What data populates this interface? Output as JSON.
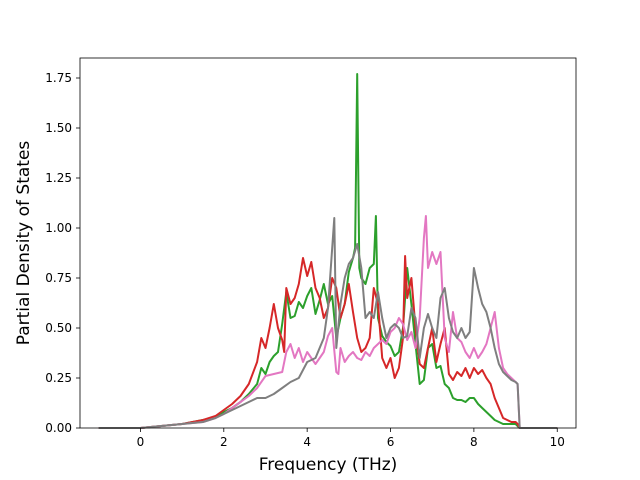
{
  "chart_data": {
    "type": "line",
    "title": "",
    "xlabel": "Frequency (THz)",
    "ylabel": "Partial Density of States",
    "xlim": [
      -1.45,
      10.45
    ],
    "ylim": [
      0,
      1.85
    ],
    "xticks": [
      0,
      2,
      4,
      6,
      8,
      10
    ],
    "yticks": [
      "0.00",
      "0.25",
      "0.50",
      "0.75",
      "1.00",
      "1.25",
      "1.50",
      "1.75"
    ],
    "grid": false,
    "legend": "none",
    "series": [
      {
        "color": "#2ca02c",
        "x": [
          -1.0,
          0.0,
          0.5,
          1.0,
          1.5,
          1.8,
          2.0,
          2.2,
          2.4,
          2.6,
          2.8,
          2.9,
          3.0,
          3.1,
          3.2,
          3.3,
          3.4,
          3.5,
          3.6,
          3.7,
          3.8,
          3.9,
          4.0,
          4.1,
          4.2,
          4.3,
          4.4,
          4.5,
          4.6,
          4.7,
          4.8,
          4.9,
          5.0,
          5.1,
          5.15,
          5.2,
          5.25,
          5.3,
          5.4,
          5.5,
          5.6,
          5.65,
          5.7,
          5.8,
          5.9,
          6.0,
          6.1,
          6.2,
          6.3,
          6.4,
          6.5,
          6.6,
          6.7,
          6.8,
          6.9,
          7.0,
          7.1,
          7.2,
          7.3,
          7.4,
          7.5,
          7.6,
          7.7,
          7.8,
          7.9,
          8.0,
          8.1,
          8.2,
          8.3,
          8.4,
          8.5,
          8.6,
          8.7,
          8.8,
          8.9,
          9.0,
          9.05,
          9.1,
          10.0
        ],
        "y": [
          0.0,
          0.0,
          0.01,
          0.02,
          0.04,
          0.05,
          0.08,
          0.1,
          0.13,
          0.17,
          0.22,
          0.3,
          0.27,
          0.33,
          0.36,
          0.38,
          0.52,
          0.68,
          0.55,
          0.56,
          0.63,
          0.6,
          0.66,
          0.7,
          0.57,
          0.64,
          0.72,
          0.62,
          0.66,
          0.45,
          0.55,
          0.62,
          0.78,
          0.85,
          0.9,
          1.77,
          0.8,
          0.75,
          0.72,
          0.8,
          0.82,
          1.06,
          0.55,
          0.46,
          0.43,
          0.41,
          0.36,
          0.38,
          0.5,
          0.8,
          0.62,
          0.42,
          0.22,
          0.24,
          0.4,
          0.42,
          0.3,
          0.31,
          0.22,
          0.2,
          0.15,
          0.14,
          0.14,
          0.13,
          0.15,
          0.15,
          0.12,
          0.1,
          0.08,
          0.06,
          0.04,
          0.03,
          0.02,
          0.02,
          0.02,
          0.02,
          0.01,
          0.0,
          0.0
        ]
      },
      {
        "color": "#d62728",
        "x": [
          -1.0,
          0.0,
          0.5,
          1.0,
          1.5,
          1.8,
          2.0,
          2.2,
          2.4,
          2.6,
          2.8,
          2.9,
          3.0,
          3.1,
          3.2,
          3.3,
          3.4,
          3.45,
          3.5,
          3.6,
          3.7,
          3.8,
          3.9,
          4.0,
          4.1,
          4.2,
          4.3,
          4.4,
          4.5,
          4.6,
          4.7,
          4.8,
          4.9,
          5.0,
          5.1,
          5.2,
          5.3,
          5.4,
          5.5,
          5.6,
          5.7,
          5.8,
          5.9,
          6.0,
          6.1,
          6.2,
          6.3,
          6.35,
          6.4,
          6.5,
          6.6,
          6.7,
          6.8,
          6.9,
          7.0,
          7.1,
          7.2,
          7.3,
          7.4,
          7.5,
          7.6,
          7.7,
          7.8,
          7.9,
          8.0,
          8.1,
          8.2,
          8.3,
          8.4,
          8.5,
          8.6,
          8.7,
          8.8,
          8.9,
          9.0,
          9.05,
          9.1,
          10.0
        ],
        "y": [
          0.0,
          0.0,
          0.01,
          0.02,
          0.04,
          0.06,
          0.09,
          0.12,
          0.16,
          0.22,
          0.33,
          0.45,
          0.4,
          0.5,
          0.62,
          0.5,
          0.44,
          0.38,
          0.7,
          0.62,
          0.65,
          0.72,
          0.85,
          0.76,
          0.83,
          0.7,
          0.65,
          0.55,
          0.6,
          0.75,
          0.7,
          0.55,
          0.62,
          0.72,
          0.58,
          0.45,
          0.38,
          0.4,
          0.45,
          0.7,
          0.62,
          0.35,
          0.3,
          0.35,
          0.25,
          0.3,
          0.45,
          0.86,
          0.65,
          0.75,
          0.5,
          0.32,
          0.3,
          0.4,
          0.5,
          0.33,
          0.42,
          0.5,
          0.27,
          0.24,
          0.28,
          0.26,
          0.3,
          0.25,
          0.3,
          0.27,
          0.29,
          0.25,
          0.22,
          0.15,
          0.1,
          0.05,
          0.04,
          0.03,
          0.03,
          0.02,
          0.0,
          0.0
        ]
      },
      {
        "color": "#e377c2",
        "x": [
          -1.0,
          0.0,
          0.5,
          1.0,
          1.5,
          1.8,
          2.0,
          2.2,
          2.4,
          2.6,
          2.8,
          3.0,
          3.2,
          3.4,
          3.5,
          3.6,
          3.7,
          3.8,
          3.9,
          4.0,
          4.1,
          4.2,
          4.3,
          4.4,
          4.5,
          4.6,
          4.7,
          4.75,
          4.8,
          4.9,
          5.0,
          5.1,
          5.2,
          5.3,
          5.4,
          5.5,
          5.6,
          5.7,
          5.8,
          5.9,
          6.0,
          6.1,
          6.2,
          6.3,
          6.4,
          6.5,
          6.6,
          6.7,
          6.8,
          6.85,
          6.9,
          7.0,
          7.1,
          7.2,
          7.3,
          7.4,
          7.5,
          7.6,
          7.7,
          7.8,
          7.9,
          8.0,
          8.1,
          8.2,
          8.3,
          8.4,
          8.5,
          8.6,
          8.7,
          8.8,
          8.9,
          9.0,
          9.05,
          9.1,
          10.0
        ],
        "y": [
          0.0,
          0.0,
          0.01,
          0.02,
          0.03,
          0.05,
          0.07,
          0.1,
          0.13,
          0.16,
          0.2,
          0.26,
          0.27,
          0.28,
          0.38,
          0.42,
          0.35,
          0.4,
          0.33,
          0.38,
          0.35,
          0.32,
          0.35,
          0.38,
          0.46,
          0.5,
          0.28,
          0.27,
          0.4,
          0.33,
          0.36,
          0.38,
          0.35,
          0.34,
          0.38,
          0.36,
          0.4,
          0.42,
          0.44,
          0.42,
          0.48,
          0.5,
          0.55,
          0.52,
          0.44,
          0.48,
          0.4,
          0.55,
          0.95,
          1.06,
          0.8,
          0.88,
          0.82,
          0.88,
          0.45,
          0.38,
          0.58,
          0.45,
          0.43,
          0.38,
          0.35,
          0.4,
          0.35,
          0.38,
          0.42,
          0.5,
          0.58,
          0.4,
          0.3,
          0.27,
          0.25,
          0.23,
          0.22,
          0.0,
          0.0
        ]
      },
      {
        "color": "#7f7f7f",
        "x": [
          -1.0,
          0.0,
          0.5,
          1.0,
          1.5,
          1.8,
          2.0,
          2.2,
          2.4,
          2.6,
          2.8,
          3.0,
          3.2,
          3.4,
          3.6,
          3.8,
          4.0,
          4.2,
          4.4,
          4.5,
          4.6,
          4.65,
          4.7,
          4.8,
          4.9,
          5.0,
          5.1,
          5.2,
          5.3,
          5.4,
          5.5,
          5.6,
          5.7,
          5.8,
          5.9,
          6.0,
          6.1,
          6.2,
          6.3,
          6.4,
          6.5,
          6.6,
          6.7,
          6.8,
          6.9,
          7.0,
          7.1,
          7.2,
          7.3,
          7.4,
          7.5,
          7.6,
          7.7,
          7.8,
          7.9,
          8.0,
          8.1,
          8.2,
          8.3,
          8.4,
          8.5,
          8.6,
          8.7,
          8.8,
          8.9,
          9.0,
          9.05,
          9.1,
          10.0
        ],
        "y": [
          0.0,
          0.0,
          0.01,
          0.02,
          0.03,
          0.05,
          0.07,
          0.09,
          0.11,
          0.13,
          0.15,
          0.15,
          0.17,
          0.2,
          0.23,
          0.25,
          0.33,
          0.35,
          0.45,
          0.6,
          0.9,
          1.05,
          0.4,
          0.62,
          0.75,
          0.82,
          0.85,
          0.92,
          0.8,
          0.55,
          0.58,
          0.55,
          0.68,
          0.55,
          0.45,
          0.5,
          0.52,
          0.5,
          0.45,
          0.46,
          0.6,
          0.55,
          0.35,
          0.5,
          0.57,
          0.5,
          0.45,
          0.65,
          0.7,
          0.55,
          0.48,
          0.45,
          0.5,
          0.45,
          0.48,
          0.8,
          0.7,
          0.62,
          0.58,
          0.5,
          0.4,
          0.32,
          0.28,
          0.26,
          0.24,
          0.23,
          0.22,
          0.0,
          0.0
        ]
      }
    ]
  }
}
